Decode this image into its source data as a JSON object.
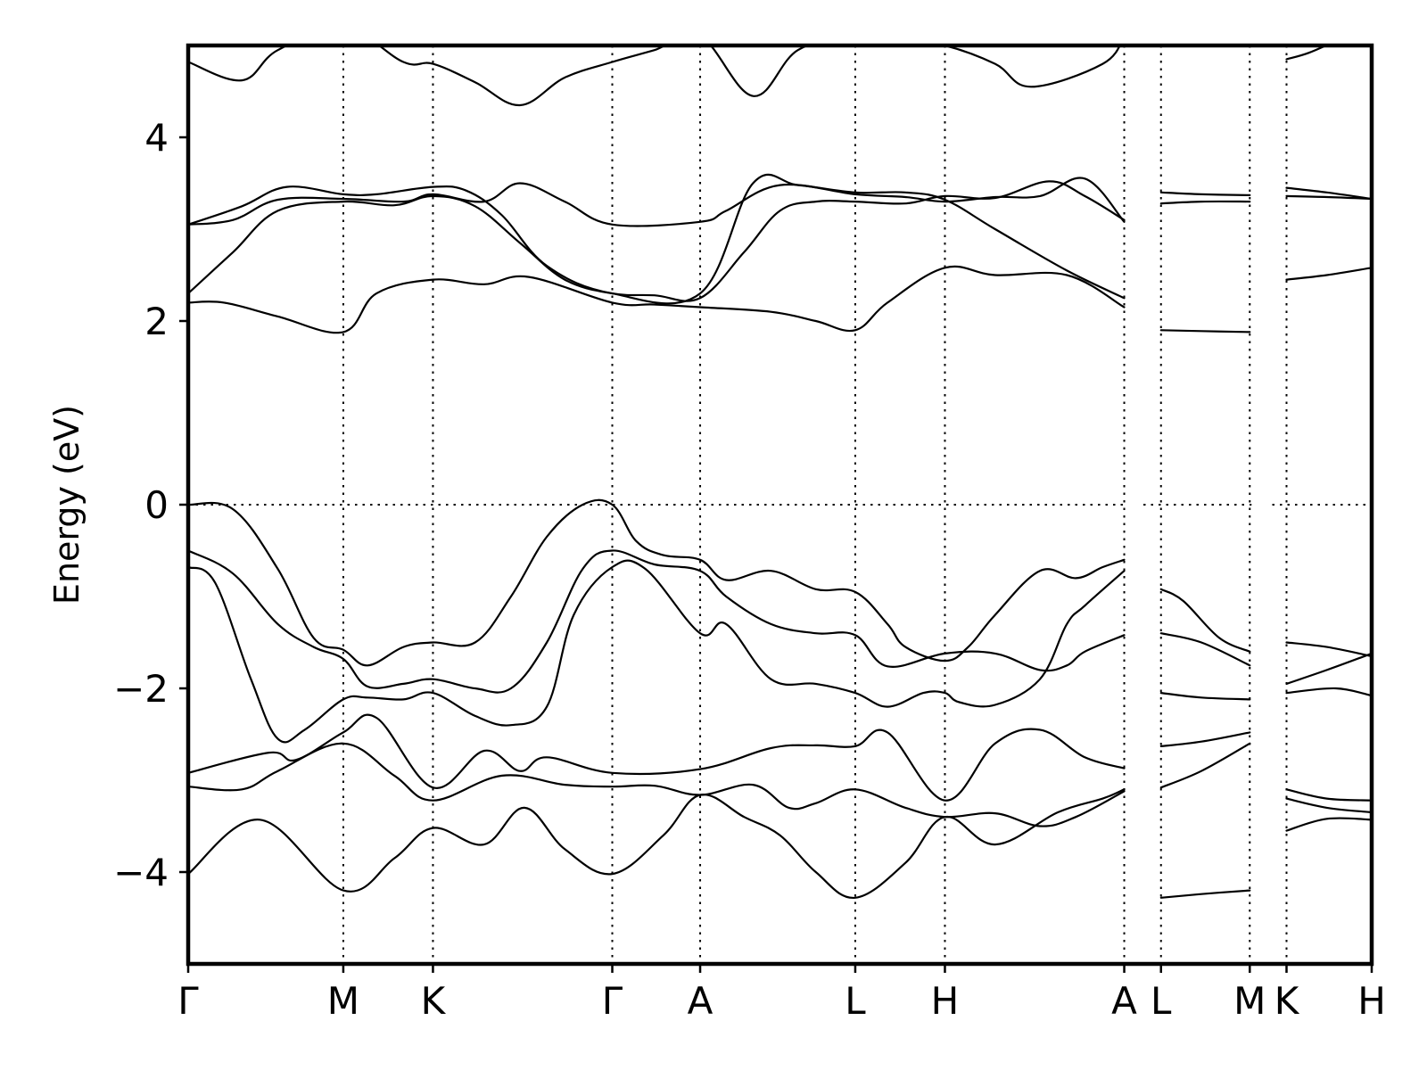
{
  "chart_data": {
    "type": "line",
    "ylabel": "Energy (eV)",
    "ylim": [
      -5,
      5
    ],
    "yticks": [
      {
        "value": -4,
        "label": "−4"
      },
      {
        "value": -2,
        "label": "−2"
      },
      {
        "value": 0,
        "label": "0"
      },
      {
        "value": 2,
        "label": "2"
      },
      {
        "value": 4,
        "label": "4"
      }
    ],
    "xlim": [
      0,
      13.2
    ],
    "kpoints": [
      {
        "x": 0.0,
        "label": "Γ"
      },
      {
        "x": 1.73,
        "label": "M"
      },
      {
        "x": 2.73,
        "label": "K"
      },
      {
        "x": 4.73,
        "label": "Γ"
      },
      {
        "x": 5.71,
        "label": "A"
      },
      {
        "x": 7.44,
        "label": "L"
      },
      {
        "x": 8.44,
        "label": "H"
      },
      {
        "x": 10.44,
        "label": "A"
      },
      {
        "x": 10.85,
        "label": "L"
      },
      {
        "x": 11.84,
        "label": "M"
      },
      {
        "x": 12.25,
        "label": "K"
      },
      {
        "x": 13.2,
        "label": "H"
      }
    ],
    "fermi_level": 0,
    "path_breaks": [
      [
        10.44,
        10.64
      ],
      [
        11.84,
        12.04
      ]
    ],
    "bands": [
      {
        "x": [
          0,
          0.8,
          1.73,
          2.3,
          2.73,
          3.3,
          3.75,
          4.2,
          4.73,
          5.3,
          5.71,
          6.2,
          6.6,
          7.0,
          7.44,
          8.0,
          8.44,
          9.0,
          9.7,
          10.2,
          10.44
        ],
        "y": [
          -4.02,
          -3.43,
          -4.2,
          -3.85,
          -3.52,
          -3.7,
          -3.3,
          -3.75,
          -4.02,
          -3.6,
          -3.16,
          -3.4,
          -3.6,
          -4.0,
          -4.28,
          -3.9,
          -3.4,
          -3.7,
          -3.35,
          -3.2,
          -3.1
        ]
      },
      {
        "x": [
          0,
          0.6,
          1.0,
          1.73,
          2.3,
          2.73,
          3.5,
          4.2,
          4.73,
          5.2,
          5.71,
          6.3,
          6.7,
          7.0,
          7.44,
          8.0,
          8.44,
          9.0,
          9.5,
          9.9,
          10.44
        ],
        "y": [
          -3.07,
          -3.1,
          -2.9,
          -2.6,
          -2.95,
          -3.22,
          -2.95,
          -3.05,
          -3.07,
          -3.06,
          -3.16,
          -3.05,
          -3.3,
          -3.25,
          -3.1,
          -3.3,
          -3.4,
          -3.36,
          -3.5,
          -3.4,
          -3.12
        ]
      },
      {
        "x": [
          0,
          0.9,
          1.2,
          1.73,
          2.1,
          2.73,
          3.3,
          3.7,
          4.0,
          4.73,
          5.71,
          6.5,
          7.0,
          7.44,
          7.8,
          8.44,
          9.0,
          9.5,
          10.0,
          10.44
        ],
        "y": [
          -2.92,
          -2.7,
          -2.78,
          -2.48,
          -2.32,
          -3.08,
          -2.68,
          -2.9,
          -2.75,
          -2.92,
          -2.88,
          -2.65,
          -2.62,
          -2.63,
          -2.48,
          -3.22,
          -2.6,
          -2.45,
          -2.75,
          -2.87
        ]
      },
      {
        "x": [
          0,
          0.3,
          0.7,
          1.0,
          1.3,
          1.73,
          2.0,
          2.4,
          2.73,
          3.2,
          3.6,
          4.0,
          4.3,
          4.73,
          5.1,
          5.71,
          6.0,
          6.5,
          7.0,
          7.44,
          7.8,
          8.2,
          8.44,
          8.6,
          9.0,
          9.5,
          9.8,
          10.0,
          10.44
        ],
        "y": [
          -0.68,
          -0.85,
          -1.9,
          -2.55,
          -2.45,
          -2.12,
          -2.1,
          -2.12,
          -2.05,
          -2.3,
          -2.4,
          -2.2,
          -1.2,
          -0.68,
          -0.7,
          -1.4,
          -1.3,
          -1.9,
          -1.95,
          -2.05,
          -2.2,
          -2.05,
          -2.05,
          -2.15,
          -2.18,
          -1.9,
          -1.3,
          -1.1,
          -0.72
        ]
      },
      {
        "x": [
          0,
          0.5,
          1.0,
          1.4,
          1.73,
          2.0,
          2.4,
          2.73,
          3.2,
          3.6,
          4.0,
          4.4,
          4.73,
          5.2,
          5.71,
          6.0,
          6.5,
          7.0,
          7.44,
          7.8,
          8.44,
          9.0,
          9.5,
          9.8,
          10.0,
          10.44
        ],
        "y": [
          -0.5,
          -0.75,
          -1.3,
          -1.55,
          -1.68,
          -1.98,
          -1.95,
          -1.9,
          -2.0,
          -2.0,
          -1.5,
          -0.7,
          -0.5,
          -0.65,
          -0.72,
          -1.0,
          -1.3,
          -1.4,
          -1.42,
          -1.76,
          -1.62,
          -1.62,
          -1.8,
          -1.75,
          -1.6,
          -1.42
        ]
      },
      {
        "x": [
          0,
          0.5,
          1.0,
          1.4,
          1.73,
          2.0,
          2.4,
          2.73,
          3.2,
          3.6,
          4.0,
          4.4,
          4.73,
          5.0,
          5.3,
          5.71,
          6.0,
          6.5,
          7.0,
          7.44,
          7.8,
          8.0,
          8.44,
          8.7,
          9.0,
          9.5,
          9.9,
          10.2,
          10.44
        ],
        "y": [
          0.0,
          -0.05,
          -0.7,
          -1.45,
          -1.58,
          -1.75,
          -1.55,
          -1.5,
          -1.5,
          -1.0,
          -0.35,
          0.0,
          0.0,
          -0.4,
          -0.55,
          -0.6,
          -0.82,
          -0.72,
          -0.92,
          -0.95,
          -1.3,
          -1.55,
          -1.7,
          -1.55,
          -1.2,
          -0.72,
          -0.8,
          -0.68,
          -0.6
        ]
      },
      {
        "x": [
          0,
          0.4,
          1.0,
          1.73,
          2.1,
          2.73,
          3.3,
          3.8,
          4.73,
          5.2,
          5.71,
          6.5,
          7.0,
          7.44,
          7.8,
          8.44,
          9.0,
          9.8,
          10.44
        ],
        "y": [
          2.2,
          2.2,
          2.05,
          1.88,
          2.3,
          2.45,
          2.4,
          2.48,
          2.2,
          2.18,
          2.15,
          2.1,
          2.0,
          1.9,
          2.2,
          2.58,
          2.5,
          2.5,
          2.15
        ]
      },
      {
        "x": [
          0,
          0.5,
          1.0,
          1.73,
          2.3,
          2.73,
          3.2,
          3.7,
          4.2,
          4.73,
          5.2,
          5.71,
          6.2,
          6.6,
          7.0,
          7.44,
          8.0,
          8.44,
          9.0,
          9.6,
          10.0,
          10.44
        ],
        "y": [
          2.3,
          2.75,
          3.2,
          3.3,
          3.26,
          3.36,
          3.25,
          2.85,
          2.45,
          2.3,
          2.28,
          2.25,
          2.75,
          3.2,
          3.3,
          3.3,
          3.28,
          3.36,
          3.34,
          3.52,
          3.36,
          3.1
        ]
      },
      {
        "x": [
          0,
          0.6,
          1.1,
          1.73,
          2.1,
          2.73,
          3.1,
          3.5,
          4.0,
          4.73,
          5.71,
          6.3,
          6.8,
          7.44,
          8.0,
          8.44,
          9.0,
          9.8,
          10.44
        ],
        "y": [
          3.05,
          3.25,
          3.46,
          3.38,
          3.38,
          3.46,
          3.42,
          3.15,
          2.6,
          2.3,
          2.3,
          3.5,
          3.48,
          3.4,
          3.4,
          3.32,
          3.0,
          2.55,
          2.25
        ]
      },
      {
        "x": [
          0,
          0.5,
          1.0,
          1.73,
          2.4,
          2.73,
          3.3,
          3.7,
          4.2,
          4.73,
          5.71,
          6.0,
          6.6,
          7.44,
          8.0,
          8.44,
          9.0,
          9.5,
          10.0,
          10.44
        ],
        "y": [
          3.05,
          3.1,
          3.32,
          3.33,
          3.3,
          3.38,
          3.3,
          3.5,
          3.3,
          3.05,
          3.08,
          3.2,
          3.48,
          3.38,
          3.35,
          3.3,
          3.35,
          3.36,
          3.55,
          3.08
        ]
      },
      {
        "x": [
          0,
          0.6,
          1.0,
          1.73,
          2.4,
          2.73,
          3.2,
          3.7,
          4.2,
          4.73,
          5.2,
          5.71,
          6.3,
          6.8,
          7.44,
          8.0,
          8.44,
          9.0,
          9.4,
          10.2,
          10.44
        ],
        "y": [
          4.82,
          4.62,
          4.95,
          5.2,
          4.82,
          4.8,
          4.6,
          4.35,
          4.65,
          4.82,
          4.95,
          5.1,
          4.45,
          4.95,
          5.1,
          5.05,
          5.0,
          4.8,
          4.55,
          4.8,
          5.1
        ]
      },
      {
        "x": [
          10.85,
          11.3,
          11.84
        ],
        "y": [
          -4.28,
          -4.24,
          -4.2
        ]
      },
      {
        "x": [
          10.85,
          11.3,
          11.84
        ],
        "y": [
          -3.08,
          -2.9,
          -2.6
        ]
      },
      {
        "x": [
          10.85,
          11.3,
          11.84
        ],
        "y": [
          -2.63,
          -2.58,
          -2.48
        ]
      },
      {
        "x": [
          10.85,
          11.3,
          11.84
        ],
        "y": [
          -2.05,
          -2.1,
          -2.12
        ]
      },
      {
        "x": [
          10.85,
          11.3,
          11.84
        ],
        "y": [
          -1.4,
          -1.5,
          -1.75
        ]
      },
      {
        "x": [
          10.85,
          11.1,
          11.5,
          11.84
        ],
        "y": [
          -0.92,
          -1.05,
          -1.45,
          -1.6
        ]
      },
      {
        "x": [
          10.85,
          11.3,
          11.84
        ],
        "y": [
          1.9,
          1.89,
          1.88
        ]
      },
      {
        "x": [
          10.85,
          11.3,
          11.84
        ],
        "y": [
          3.28,
          3.3,
          3.3
        ]
      },
      {
        "x": [
          10.85,
          11.3,
          11.84
        ],
        "y": [
          3.4,
          3.38,
          3.37
        ]
      },
      {
        "x": [
          12.25,
          12.7,
          13.2
        ],
        "y": [
          -3.55,
          -3.42,
          -3.43
        ]
      },
      {
        "x": [
          12.25,
          12.7,
          13.2
        ],
        "y": [
          -3.2,
          -3.3,
          -3.35
        ]
      },
      {
        "x": [
          12.25,
          12.7,
          13.2
        ],
        "y": [
          -3.1,
          -3.2,
          -3.22
        ]
      },
      {
        "x": [
          12.25,
          12.8,
          13.2
        ],
        "y": [
          -2.05,
          -2.0,
          -2.08
        ]
      },
      {
        "x": [
          12.25,
          12.7,
          13.2
        ],
        "y": [
          -1.95,
          -1.8,
          -1.62
        ]
      },
      {
        "x": [
          12.25,
          12.7,
          13.2
        ],
        "y": [
          -1.5,
          -1.55,
          -1.65
        ]
      },
      {
        "x": [
          12.25,
          12.7,
          13.2
        ],
        "y": [
          2.45,
          2.5,
          2.58
        ]
      },
      {
        "x": [
          12.25,
          12.7,
          13.2
        ],
        "y": [
          3.36,
          3.35,
          3.33
        ]
      },
      {
        "x": [
          12.25,
          12.7,
          13.2
        ],
        "y": [
          3.45,
          3.4,
          3.33
        ]
      },
      {
        "x": [
          12.25,
          12.5,
          12.8
        ],
        "y": [
          4.85,
          4.92,
          5.05
        ]
      }
    ]
  }
}
